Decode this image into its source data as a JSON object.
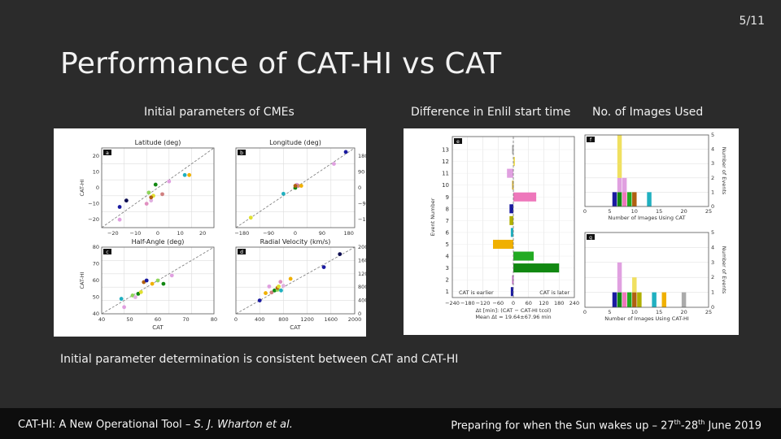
{
  "slide": {
    "page_number": "5/11",
    "title": "Performance of CAT-HI vs CAT",
    "caption_left": "Initial parameters of CMEs",
    "caption_mid": "Difference in Enlil start time",
    "caption_right": "No. of Images Used",
    "summary": "Initial parameter determination is consistent between CAT and CAT-HI",
    "footer_left_plain": "CAT-HI: A New Operational Tool – ",
    "footer_left_italic": "S. J. Wharton et al.",
    "footer_right_pre": "Preparing for when the Sun wakes up – 27",
    "footer_right_sup1": "th",
    "footer_right_mid": "-28",
    "footer_right_sup2": "th",
    "footer_right_post": " June 2019"
  },
  "chart_data": [
    {
      "panel": "a",
      "type": "scatter",
      "title": "Latitude (deg)",
      "ylabel": "CAT-HI",
      "xlim": [
        -25,
        25
      ],
      "ylim": [
        -25,
        25
      ],
      "xticks": [
        "−20",
        "−10",
        "0",
        "10",
        "20"
      ],
      "yticks": [
        "20",
        "10",
        "0",
        "−10",
        "−20"
      ],
      "points": [
        [
          -17,
          -12,
          "#1a1aa0"
        ],
        [
          -14,
          -8,
          "#0c0c50"
        ],
        [
          -17,
          -20,
          "#e0a0e0"
        ],
        [
          -5,
          -10,
          "#e090c0"
        ],
        [
          -3,
          -8,
          "#e0b0e0"
        ],
        [
          -4,
          -3,
          "#8fd65a"
        ],
        [
          -2,
          -5,
          "#e0e030"
        ],
        [
          -1,
          2,
          "#118811"
        ],
        [
          2,
          -4,
          "#d08080"
        ],
        [
          5,
          4,
          "#e0a0e0"
        ],
        [
          14,
          8,
          "#f0b000"
        ],
        [
          12,
          8,
          "#20b0c0"
        ],
        [
          -3,
          -6,
          "#b06010"
        ]
      ]
    },
    {
      "panel": "b",
      "type": "scatter",
      "title": "Longitude (deg)",
      "xlim": [
        -200,
        200
      ],
      "ylim": [
        -200,
        200
      ],
      "xticks": [
        "−180",
        "−90",
        "0",
        "90",
        "180"
      ],
      "yticks_right": [
        "180",
        "90",
        "0",
        "−90",
        "−180"
      ],
      "points": [
        [
          -150,
          -150,
          "#e0e030"
        ],
        [
          -40,
          -30,
          "#20b0c0"
        ],
        [
          0,
          0,
          "#118811"
        ],
        [
          5,
          15,
          "#e0a0e0"
        ],
        [
          10,
          10,
          "#d08080"
        ],
        [
          20,
          10,
          "#f0b000"
        ],
        [
          0,
          10,
          "#b06010"
        ],
        [
          130,
          120,
          "#e0a0e0"
        ],
        [
          170,
          180,
          "#1a1aa0"
        ]
      ]
    },
    {
      "panel": "c",
      "type": "scatter",
      "title": "Half-Angle (deg)",
      "xlabel": "CAT",
      "ylabel": "CAT-HI",
      "xlim": [
        40,
        80
      ],
      "ylim": [
        40,
        80
      ],
      "xticks": [
        "40",
        "50",
        "60",
        "70",
        "80"
      ],
      "yticks": [
        "80",
        "70",
        "60",
        "50",
        "40"
      ],
      "points": [
        [
          48,
          44,
          "#e0a0e0"
        ],
        [
          47,
          49,
          "#20b0c0"
        ],
        [
          51,
          51,
          "#8fd65a"
        ],
        [
          53,
          52,
          "#118811"
        ],
        [
          54,
          53,
          "#e0e030"
        ],
        [
          55,
          59,
          "#b06010"
        ],
        [
          58,
          58,
          "#f0b000"
        ],
        [
          60,
          60,
          "#8fd65a"
        ],
        [
          62,
          58,
          "#118811"
        ],
        [
          65,
          63,
          "#e0a0e0"
        ],
        [
          52,
          50,
          "#e0b0e0"
        ],
        [
          56,
          60,
          "#1a1aa0"
        ]
      ]
    },
    {
      "panel": "d",
      "type": "scatter",
      "title": "Radial Velocity (km/s)",
      "xlabel": "CAT",
      "xlim": [
        0,
        2000
      ],
      "ylim": [
        0,
        2000
      ],
      "xticks": [
        "0",
        "400",
        "800",
        "1200",
        "1600",
        "2000"
      ],
      "yticks_right": [
        "2000",
        "1600",
        "1200",
        "800",
        "400",
        "0"
      ],
      "points": [
        [
          400,
          400,
          "#1a1aa0"
        ],
        [
          500,
          620,
          "#f0b000"
        ],
        [
          560,
          820,
          "#e0a0e0"
        ],
        [
          600,
          640,
          "#d08080"
        ],
        [
          650,
          700,
          "#118811"
        ],
        [
          700,
          720,
          "#8fd65a"
        ],
        [
          700,
          780,
          "#b06010"
        ],
        [
          720,
          820,
          "#e0e030"
        ],
        [
          750,
          960,
          "#e090c0"
        ],
        [
          760,
          700,
          "#20b0c0"
        ],
        [
          800,
          840,
          "#e0b0e0"
        ],
        [
          1480,
          1400,
          "#1a1aa0"
        ],
        [
          1750,
          1790,
          "#0c0c50"
        ],
        [
          920,
          1050,
          "#f0b000"
        ]
      ]
    },
    {
      "panel": "e",
      "type": "bar",
      "orientation": "horizontal",
      "ylabel": "Event Number",
      "xlabel": "Δt [min]: (CAT − CAT-HI tcol)",
      "footnote": "Mean Δt = 19.64±67.96 min",
      "label_left": "CAT is earlier",
      "label_right": "CAT is later",
      "xticks": [
        "−240",
        "−180",
        "−120",
        "−60",
        "0",
        "60",
        "120",
        "180",
        "240"
      ],
      "xlim": [
        -240,
        240
      ],
      "event_labels": [
        "1",
        "2",
        "3",
        "4",
        "5",
        "6",
        "7",
        "8",
        "9",
        "10",
        "11",
        "12",
        "13"
      ],
      "values": [
        -10,
        -5,
        180,
        80,
        -80,
        -10,
        -15,
        -15,
        90,
        -5,
        -25,
        0,
        -5
      ],
      "colors": [
        "#1a1aa0",
        "#c070c0",
        "#118811",
        "#22aa22",
        "#f0b000",
        "#20b0c0",
        "#b0b000",
        "#1a1aa0",
        "#ee77bb",
        "#ccaa33",
        "#e0a0e0",
        "#f0e060",
        "#aaaaaa"
      ]
    },
    {
      "panel": "f",
      "type": "bar",
      "stacked": true,
      "xlabel": "Number of Images Using CAT",
      "ylabel": "Number of Events",
      "xlim": [
        0,
        25
      ],
      "ylim": [
        0,
        5
      ],
      "xticks": [
        "0",
        "5",
        "10",
        "15",
        "20",
        "25"
      ],
      "yticks": [
        "5",
        "4",
        "3",
        "2",
        "1",
        "0"
      ],
      "series": [
        {
          "x": 6,
          "segments": [
            "#1a1aa0"
          ]
        },
        {
          "x": 7,
          "segments": [
            "#118811",
            "#e0a0e0",
            "#f0e060",
            "#f0e060",
            "#f0e060"
          ]
        },
        {
          "x": 8,
          "segments": [
            "#ee77bb",
            "#e0a0e0"
          ]
        },
        {
          "x": 9,
          "segments": [
            "#22aa22"
          ]
        },
        {
          "x": 10,
          "segments": [
            "#b06010"
          ]
        },
        {
          "x": 13,
          "segments": [
            "#20b0c0"
          ]
        }
      ]
    },
    {
      "panel": "g",
      "type": "bar",
      "stacked": true,
      "xlabel": "Number of Images Using CAT-HI",
      "ylabel": "Number of Events",
      "xlim": [
        0,
        25
      ],
      "ylim": [
        0,
        5
      ],
      "xticks": [
        "0",
        "5",
        "10",
        "15",
        "20",
        "25"
      ],
      "yticks": [
        "5",
        "4",
        "3",
        "2",
        "1",
        "0"
      ],
      "series": [
        {
          "x": 6,
          "segments": [
            "#1a1aa0"
          ]
        },
        {
          "x": 7,
          "segments": [
            "#118811",
            "#e0a0e0",
            "#e0a0e0"
          ]
        },
        {
          "x": 8,
          "segments": [
            "#ee77bb"
          ]
        },
        {
          "x": 9,
          "segments": [
            "#22aa22"
          ]
        },
        {
          "x": 10,
          "segments": [
            "#b06010",
            "#f0e060"
          ]
        },
        {
          "x": 11,
          "segments": [
            "#b0b000"
          ]
        },
        {
          "x": 14,
          "segments": [
            "#20b0c0"
          ]
        },
        {
          "x": 16,
          "segments": [
            "#f0b000"
          ]
        },
        {
          "x": 20,
          "segments": [
            "#aaaaaa"
          ]
        }
      ]
    }
  ]
}
